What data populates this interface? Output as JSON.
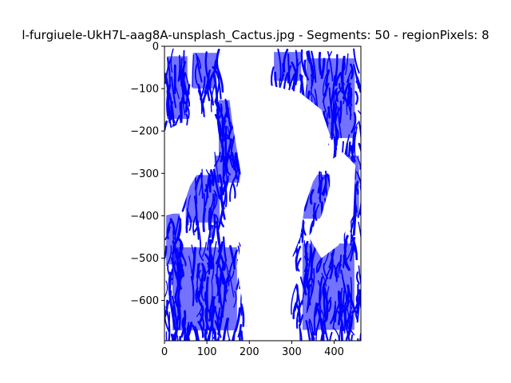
{
  "chart_data": {
    "type": "scatter",
    "title": "l-furgiuele-UkH7L-aag8A-unsplash_Cactus.jpg - Segments: 50 - regionPixels: 8",
    "xlabel": "",
    "ylabel": "",
    "xlim": [
      0,
      463
    ],
    "ylim": [
      -695,
      0
    ],
    "x_ticks": [
      0,
      100,
      200,
      300,
      400
    ],
    "y_ticks": [
      0,
      -100,
      -200,
      -300,
      -400,
      -500,
      -600
    ],
    "grid": false,
    "stroke_color": "#0000ff",
    "background_color": "#ffffff",
    "white_regions": [
      {
        "name": "cactus-body",
        "points": [
          [
            150,
            -100
          ],
          [
            200,
            -80
          ],
          [
            240,
            -90
          ],
          [
            320,
            -110
          ],
          [
            370,
            -150
          ],
          [
            390,
            -210
          ],
          [
            380,
            -270
          ],
          [
            350,
            -320
          ],
          [
            330,
            -380
          ],
          [
            320,
            -450
          ],
          [
            300,
            -500
          ],
          [
            300,
            -560
          ],
          [
            290,
            -620
          ],
          [
            300,
            -680
          ],
          [
            310,
            -695
          ],
          [
            200,
            -695
          ],
          [
            190,
            -640
          ],
          [
            180,
            -580
          ],
          [
            170,
            -520
          ],
          [
            180,
            -470
          ],
          [
            160,
            -430
          ],
          [
            170,
            -360
          ],
          [
            180,
            -300
          ],
          [
            170,
            -240
          ],
          [
            160,
            -180
          ]
        ]
      },
      {
        "name": "left-arm-gap",
        "points": [
          [
            0,
            -200
          ],
          [
            40,
            -180
          ],
          [
            80,
            -200
          ],
          [
            90,
            -280
          ],
          [
            60,
            -330
          ],
          [
            40,
            -390
          ],
          [
            0,
            -400
          ]
        ]
      },
      {
        "name": "right-arm-gap",
        "points": [
          [
            390,
            -270
          ],
          [
            420,
            -250
          ],
          [
            450,
            -280
          ],
          [
            445,
            -400
          ],
          [
            410,
            -470
          ],
          [
            370,
            -500
          ],
          [
            340,
            -450
          ],
          [
            370,
            -400
          ],
          [
            390,
            -330
          ]
        ]
      },
      {
        "name": "bottom-center-gap",
        "points": [
          [
            200,
            -560
          ],
          [
            240,
            -580
          ],
          [
            280,
            -600
          ],
          [
            300,
            -640
          ],
          [
            310,
            -695
          ],
          [
            200,
            -695
          ]
        ]
      }
    ],
    "stroke_blocks": [
      {
        "x": [
          0,
          60
        ],
        "y": [
          -5,
          -190
        ]
      },
      {
        "x": [
          60,
          130
        ],
        "y": [
          -5,
          -110
        ]
      },
      {
        "x": [
          120,
          200
        ],
        "y": [
          -110,
          -280
        ]
      },
      {
        "x": [
          250,
          330
        ],
        "y": [
          -5,
          -90
        ]
      },
      {
        "x": [
          320,
          463
        ],
        "y": [
          -5,
          -240
        ]
      },
      {
        "x": [
          40,
          140
        ],
        "y": [
          -290,
          -430
        ]
      },
      {
        "x": [
          110,
          190
        ],
        "y": [
          -250,
          -330
        ]
      },
      {
        "x": [
          190,
          280
        ],
        "y": [
          -180,
          -320
        ]
      },
      {
        "x": [
          180,
          240
        ],
        "y": [
          -320,
          -430
        ]
      },
      {
        "x": [
          310,
          400
        ],
        "y": [
          -290,
          -420
        ]
      },
      {
        "x": [
          420,
          463
        ],
        "y": [
          -240,
          -420
        ]
      },
      {
        "x": [
          0,
          40
        ],
        "y": [
          -380,
          -530
        ]
      },
      {
        "x": [
          0,
          190
        ],
        "y": [
          -450,
          -695
        ]
      },
      {
        "x": [
          170,
          270
        ],
        "y": [
          -440,
          -520
        ]
      },
      {
        "x": [
          210,
          290
        ],
        "y": [
          -590,
          -695
        ]
      },
      {
        "x": [
          310,
          463
        ],
        "y": [
          -440,
          -695
        ]
      }
    ]
  }
}
